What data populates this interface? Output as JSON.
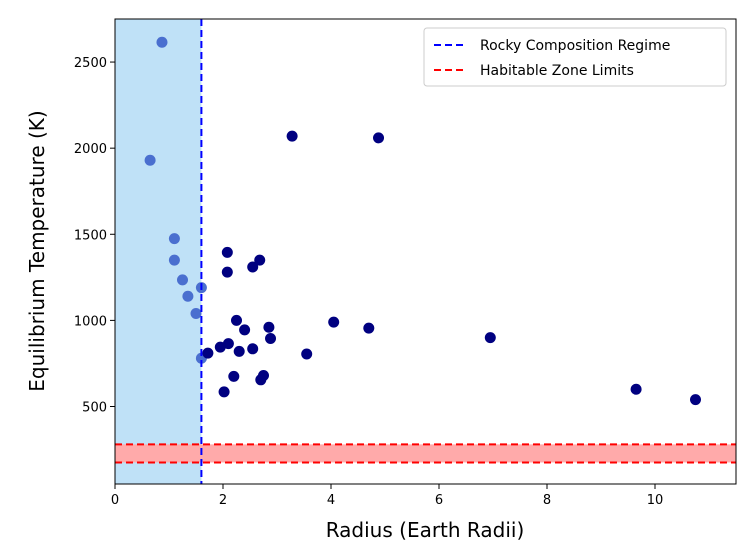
{
  "chart_data": {
    "type": "scatter",
    "title": "",
    "xlabel": "Radius (Earth Radii)",
    "ylabel": "Equilibrium Temperature (K)",
    "xlim": [
      0,
      11.5
    ],
    "ylim": [
      50,
      2750
    ],
    "xticks": [
      0,
      2,
      4,
      6,
      8,
      10
    ],
    "yticks": [
      500,
      1000,
      1500,
      2000,
      2500
    ],
    "grid": false,
    "legend_position": "top-right",
    "rocky_region": {
      "x_min": 0,
      "x_max": 1.6,
      "color": "#bfe1f7"
    },
    "habitable_band": {
      "y_min": 175,
      "y_max": 280,
      "color": "#ffaaaa"
    },
    "legend": [
      {
        "label": "Rocky Composition Regime",
        "color": "#0000ff",
        "style": "dashed"
      },
      {
        "label": "Habitable Zone Limits",
        "color": "#ff0000",
        "style": "dashed"
      }
    ],
    "series": [
      {
        "color": "#4a6fcf",
        "points": [
          [
            0.87,
            2615
          ],
          [
            0.65,
            1930
          ],
          [
            1.1,
            1475
          ],
          [
            1.1,
            1350
          ],
          [
            1.25,
            1235
          ],
          [
            1.35,
            1140
          ],
          [
            1.5,
            1040
          ],
          [
            1.6,
            780
          ],
          [
            1.6,
            1190
          ]
        ]
      },
      {
        "color": "#000080",
        "points": [
          [
            1.72,
            810
          ],
          [
            1.95,
            845
          ],
          [
            2.02,
            585
          ],
          [
            2.08,
            1395
          ],
          [
            2.08,
            1280
          ],
          [
            2.1,
            865
          ],
          [
            2.2,
            675
          ],
          [
            2.25,
            1000
          ],
          [
            2.3,
            820
          ],
          [
            2.4,
            945
          ],
          [
            2.55,
            1310
          ],
          [
            2.55,
            835
          ],
          [
            2.68,
            1350
          ],
          [
            2.7,
            655
          ],
          [
            2.75,
            680
          ],
          [
            2.85,
            960
          ],
          [
            2.88,
            895
          ],
          [
            3.28,
            2070
          ],
          [
            3.55,
            805
          ],
          [
            4.05,
            990
          ],
          [
            4.7,
            955
          ],
          [
            4.88,
            2060
          ],
          [
            6.95,
            900
          ],
          [
            9.65,
            600
          ],
          [
            10.75,
            540
          ]
        ]
      }
    ]
  }
}
